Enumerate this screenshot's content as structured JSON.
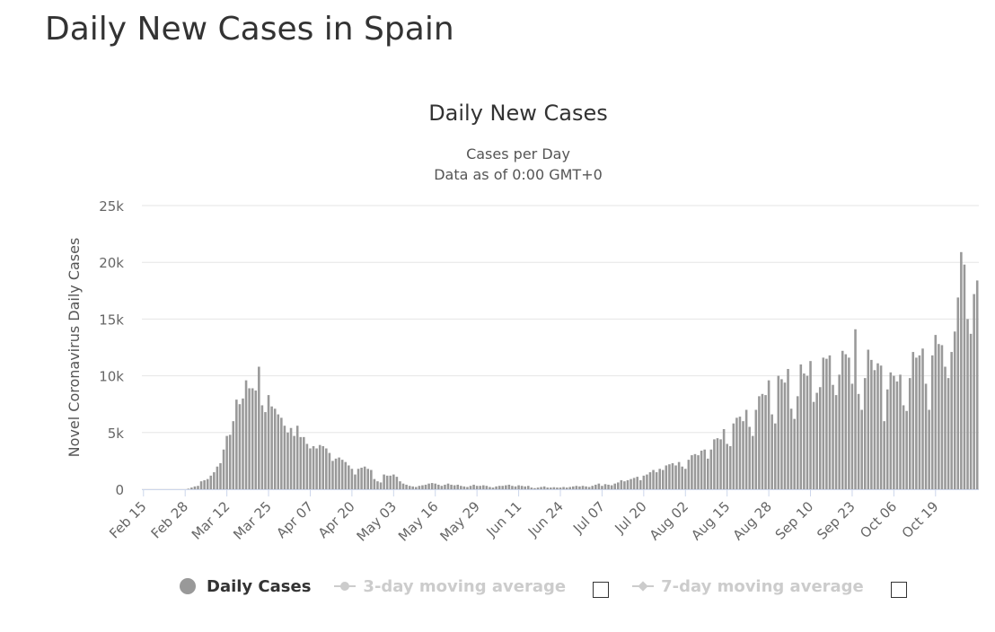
{
  "page": {
    "title": "Daily New Cases in Spain"
  },
  "chart_data": {
    "type": "bar",
    "title": "Daily New Cases",
    "subtitle_lines": [
      "Cases per Day",
      "Data as of 0:00 GMT+0"
    ],
    "ylabel": "Novel Coronavirus Daily Cases",
    "xlabel": "",
    "ylim": [
      0,
      25000
    ],
    "y_ticks": [
      0,
      5000,
      10000,
      15000,
      20000,
      25000
    ],
    "y_tick_labels": [
      "0",
      "5k",
      "10k",
      "15k",
      "20k",
      "25k"
    ],
    "x_tick_labels": [
      "Feb 15",
      "Feb 28",
      "Mar 12",
      "Mar 25",
      "Apr 07",
      "Apr 20",
      "May 03",
      "May 16",
      "May 29",
      "Jun 11",
      "Jun 24",
      "Jul 07",
      "Jul 20",
      "Aug 02",
      "Aug 15",
      "Aug 28",
      "Sep 10",
      "Sep 23",
      "Oct 06",
      "Oct 19"
    ],
    "start_date": "2020-02-15",
    "bar_color": "#999999",
    "series": [
      {
        "name": "Daily Cases",
        "values": [
          0,
          0,
          0,
          0,
          0,
          0,
          0,
          0,
          0,
          0,
          0,
          0,
          0,
          0,
          50,
          150,
          250,
          300,
          700,
          800,
          900,
          1200,
          1500,
          2000,
          2300,
          3500,
          4700,
          4800,
          6000,
          7900,
          7500,
          8000,
          9600,
          8900,
          8900,
          8700,
          10800,
          7400,
          6800,
          8300,
          7300,
          7100,
          6600,
          6300,
          5600,
          5000,
          5400,
          4700,
          5600,
          4600,
          4600,
          4000,
          3600,
          3800,
          3600,
          3900,
          3800,
          3600,
          3200,
          2500,
          2700,
          2800,
          2600,
          2400,
          2100,
          1800,
          1300,
          1800,
          1900,
          2000,
          1800,
          1700,
          900,
          700,
          600,
          1300,
          1200,
          1200,
          1300,
          1100,
          700,
          500,
          400,
          300,
          250,
          200,
          300,
          350,
          400,
          500,
          550,
          500,
          400,
          300,
          400,
          500,
          400,
          350,
          400,
          300,
          250,
          200,
          300,
          400,
          300,
          300,
          350,
          300,
          200,
          150,
          250,
          300,
          300,
          350,
          400,
          300,
          250,
          350,
          300,
          250,
          300,
          150,
          100,
          150,
          200,
          250,
          150,
          150,
          180,
          150,
          150,
          200,
          150,
          200,
          250,
          300,
          250,
          300,
          250,
          200,
          300,
          400,
          500,
          300,
          450,
          400,
          350,
          500,
          600,
          800,
          700,
          800,
          900,
          1000,
          1100,
          800,
          1200,
          1300,
          1500,
          1700,
          1500,
          1800,
          1700,
          2100,
          2200,
          2300,
          2100,
          2400,
          2000,
          1800,
          2600,
          3000,
          3100,
          3000,
          3400,
          3500,
          2700,
          3500,
          4400,
          4500,
          4400,
          5300,
          4000,
          3800,
          5800,
          6300,
          6400,
          6000,
          7000,
          5500,
          4700,
          7000,
          8200,
          8400,
          8300,
          9600,
          6600,
          5800,
          10000,
          9700,
          9400,
          10600,
          7100,
          6200,
          8200,
          11000,
          10200,
          10000,
          11300,
          7700,
          8500,
          9000,
          11600,
          11500,
          11800,
          9200,
          8300,
          10100,
          12200,
          11900,
          11600,
          9300,
          14100,
          8400,
          7000,
          9800,
          12300,
          11400,
          10500,
          11100,
          10900,
          6000,
          8800,
          10300,
          10000,
          9500,
          10100,
          7400,
          6900,
          9800,
          12100,
          11600,
          11800,
          12400,
          9300,
          7000,
          11800,
          13600,
          12800,
          12700,
          10800,
          9800,
          12100,
          13900,
          16900,
          20900,
          19800,
          15000,
          13700,
          17200,
          18400
        ]
      }
    ],
    "legend": {
      "daily_cases": "Daily Cases",
      "avg3": "3-day moving average",
      "avg7": "7-day moving average"
    }
  }
}
